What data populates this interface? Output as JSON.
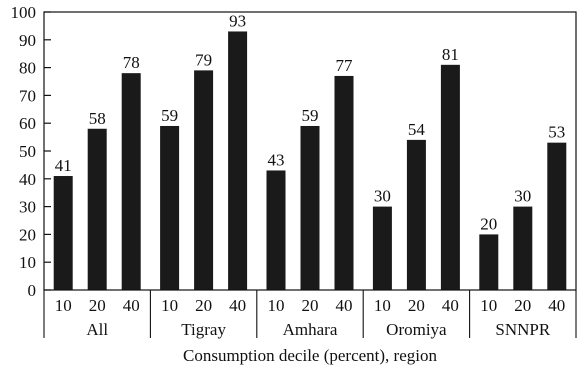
{
  "chart_data": {
    "type": "bar",
    "title": "",
    "xlabel": "Consumption decile (percent), region",
    "ylabel": "",
    "ylim": [
      0,
      100
    ],
    "yticks": [
      0,
      10,
      20,
      30,
      40,
      50,
      60,
      70,
      80,
      90,
      100
    ],
    "grid": false,
    "legend": "none",
    "bar_color": "#1a1a1a",
    "groups": [
      {
        "label": "All",
        "categories": [
          "10",
          "20",
          "40"
        ],
        "values": [
          41,
          58,
          78
        ]
      },
      {
        "label": "Tigray",
        "categories": [
          "10",
          "20",
          "40"
        ],
        "values": [
          59,
          79,
          93
        ]
      },
      {
        "label": "Amhara",
        "categories": [
          "10",
          "20",
          "40"
        ],
        "values": [
          43,
          59,
          77
        ]
      },
      {
        "label": "Oromiya",
        "categories": [
          "10",
          "20",
          "40"
        ],
        "values": [
          30,
          54,
          81
        ]
      },
      {
        "label": "SNNPR",
        "categories": [
          "10",
          "20",
          "40"
        ],
        "values": [
          20,
          30,
          53
        ]
      }
    ]
  }
}
